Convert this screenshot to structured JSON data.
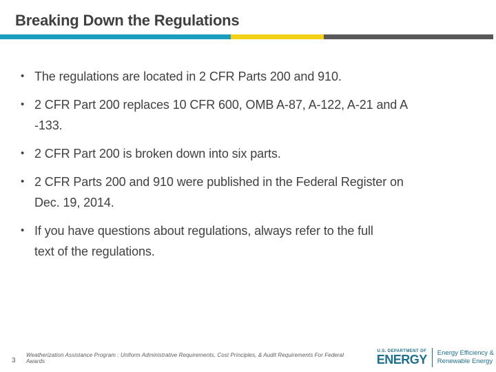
{
  "slide": {
    "title": "Breaking Down the Regulations",
    "page_number": "3",
    "footnote": "Weatherization Assistance Program : Uniform Administrative Requirements, Cost Principles, & Audit Requirements For Federal Awards"
  },
  "content": {
    "bullet_glyph": "•",
    "bullets": [
      "The regulations are located in 2 CFR Parts 200 and 910.",
      "2 CFR Part 200 replaces 10 CFR 600, OMB A-87, A-122, A-21 and A\n-133.",
      "2 CFR Part 200 is broken down into six parts.",
      "2 CFR Parts 200 and 910 were published in the Federal Register on\nDec. 19, 2014.",
      "If you have questions about regulations, always refer to the full\ntext of the regulations."
    ]
  },
  "logo": {
    "agency_small": "U.S. DEPARTMENT OF",
    "agency_name": "ENERGY",
    "office_line1": "Energy Efficiency &",
    "office_line2": "Renewable Energy"
  },
  "colors": {
    "accent_blue": "#1b9dc0",
    "accent_yellow": "#f2d116",
    "accent_gray": "#595959",
    "body_text": "#404040",
    "logo_teal": "#1d6f8e"
  }
}
